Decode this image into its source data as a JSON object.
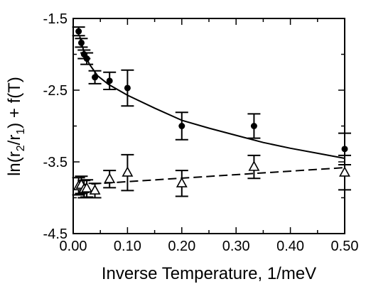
{
  "chart_data": {
    "type": "scatter",
    "xlabel": "Inverse Temperature, 1/meV",
    "ylabel": "ln(r2/r1) + f(T)",
    "xlim": [
      0.0,
      0.5
    ],
    "ylim": [
      -4.5,
      -1.5
    ],
    "x_ticks": [
      "0.00",
      "0.10",
      "0.20",
      "0.30",
      "0.40",
      "0.50"
    ],
    "y_ticks": [
      "-1.5",
      "-2.5",
      "-3.5",
      "-4.5"
    ],
    "x_tick_values": [
      0.0,
      0.1,
      0.2,
      0.3,
      0.4,
      0.5
    ],
    "y_tick_values": [
      -1.5,
      -2.5,
      -3.5,
      -4.5
    ],
    "series": [
      {
        "marker": "filled-circle",
        "x": [
          0.01,
          0.015,
          0.02,
          0.025,
          0.04,
          0.067,
          0.1,
          0.2,
          0.333,
          0.5
        ],
        "y": [
          -1.68,
          -1.84,
          -2.0,
          -2.06,
          -2.32,
          -2.37,
          -2.47,
          -3.0,
          -3.0,
          -3.32
        ],
        "err": [
          0.06,
          0.06,
          0.06,
          0.08,
          0.09,
          0.12,
          0.25,
          0.19,
          0.17,
          0.22
        ]
      },
      {
        "marker": "open-triangle",
        "x": [
          0.01,
          0.015,
          0.02,
          0.025,
          0.04,
          0.067,
          0.1,
          0.2,
          0.333,
          0.5
        ],
        "y": [
          -3.84,
          -3.82,
          -3.88,
          -3.87,
          -3.9,
          -3.74,
          -3.65,
          -3.8,
          -3.57,
          -3.65
        ],
        "err": [
          0.12,
          0.12,
          0.12,
          0.12,
          0.1,
          0.12,
          0.25,
          0.18,
          0.16,
          0.24
        ]
      }
    ],
    "fits": [
      {
        "style": "solid",
        "x": [
          0.012,
          0.02,
          0.03,
          0.045,
          0.065,
          0.1,
          0.15,
          0.2,
          0.25,
          0.3,
          0.35,
          0.4,
          0.45,
          0.5
        ],
        "y": [
          -1.75,
          -1.97,
          -2.14,
          -2.3,
          -2.42,
          -2.57,
          -2.75,
          -2.92,
          -3.03,
          -3.13,
          -3.23,
          -3.31,
          -3.38,
          -3.45
        ]
      },
      {
        "style": "dashed",
        "x": [
          0.01,
          0.5
        ],
        "y": [
          -3.82,
          -3.58
        ]
      }
    ]
  }
}
